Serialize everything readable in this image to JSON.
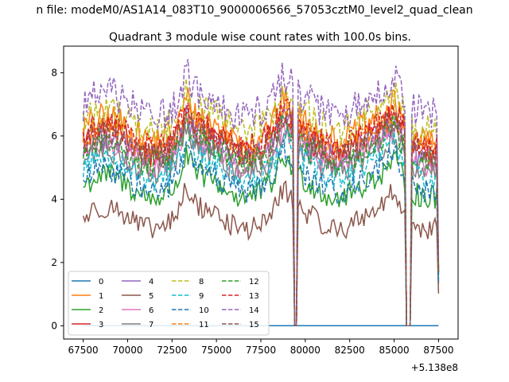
{
  "chart_data": {
    "type": "line",
    "suptitle": "n file: modeM0/AS1A14_083T10_9000006566_57053cztM0_level2_quad_clean",
    "title": "Quadrant 3 module wise count rates with 100.0s bins.",
    "xlabel": "",
    "ylabel": "",
    "x_offset_label": "+5.138e8",
    "xlim": [
      66400,
      88600
    ],
    "ylim": [
      -0.42,
      8.84
    ],
    "xticks": [
      67500,
      70000,
      72500,
      75000,
      77500,
      80000,
      82500,
      85000,
      87500
    ],
    "xtick_labels": [
      "67500",
      "70000",
      "72500",
      "75000",
      "77500",
      "80000",
      "82500",
      "85000",
      "87500"
    ],
    "yticks": [
      0,
      2,
      4,
      6,
      8
    ],
    "ytick_labels": [
      "0",
      "2",
      "4",
      "6",
      "8"
    ],
    "x_start": 67500,
    "x_step": 100,
    "x_end": 87500,
    "gaps": [
      [
        79300,
        79600
      ],
      [
        85600,
        86000
      ]
    ],
    "legend_location": "lower left",
    "legend_columns": 4,
    "series": [
      {
        "name": "0",
        "color": "#1f77b4",
        "style": "solid",
        "base": 0,
        "amp": 0,
        "constant": 0,
        "zero_everywhere": true
      },
      {
        "name": "1",
        "color": "#ff7f0e",
        "style": "solid",
        "base": 6.2,
        "amp": 0.5
      },
      {
        "name": "2",
        "color": "#2ca02c",
        "style": "solid",
        "base": 4.4,
        "amp": 0.4
      },
      {
        "name": "3",
        "color": "#d62728",
        "style": "solid",
        "base": 5.8,
        "amp": 0.45
      },
      {
        "name": "4",
        "color": "#9467bd",
        "style": "solid",
        "base": 5.6,
        "amp": 0.45
      },
      {
        "name": "5",
        "color": "#8c564b",
        "style": "solid",
        "base": 3.4,
        "amp": 0.35
      },
      {
        "name": "6",
        "color": "#e377c2",
        "style": "solid",
        "base": 5.4,
        "amp": 0.4
      },
      {
        "name": "7",
        "color": "#7f7f7f",
        "style": "solid",
        "base": 5.2,
        "amp": 0.4
      },
      {
        "name": "8",
        "color": "#bcbd22",
        "style": "dashed",
        "base": 6.5,
        "amp": 0.5
      },
      {
        "name": "9",
        "color": "#17becf",
        "style": "dashed",
        "base": 5.0,
        "amp": 0.4
      },
      {
        "name": "10",
        "color": "#1f77b4",
        "style": "dashed",
        "base": 4.6,
        "amp": 0.4
      },
      {
        "name": "11",
        "color": "#ff7f0e",
        "style": "dashed",
        "base": 5.9,
        "amp": 0.45
      },
      {
        "name": "12",
        "color": "#2ca02c",
        "style": "dashed",
        "base": 5.5,
        "amp": 0.45
      },
      {
        "name": "13",
        "color": "#d62728",
        "style": "dashed",
        "base": 6.0,
        "amp": 0.45
      },
      {
        "name": "14",
        "color": "#9467bd",
        "style": "dashed",
        "base": 7.0,
        "amp": 0.55
      },
      {
        "name": "15",
        "color": "#8c564b",
        "style": "dashed",
        "base": 5.7,
        "amp": 0.45
      }
    ]
  }
}
